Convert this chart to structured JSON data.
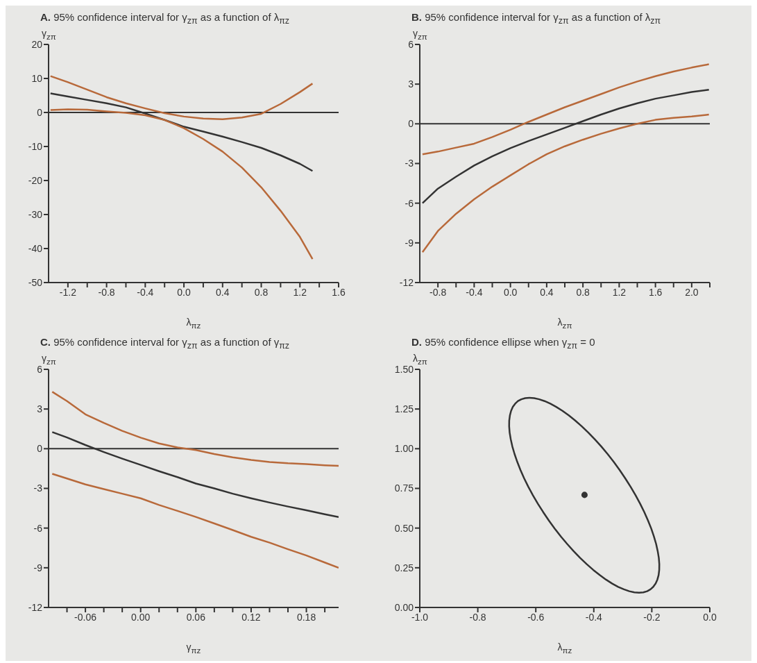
{
  "chart_data": [
    {
      "type": "line",
      "title": "A. 95% confidence interval for γ$_{zπ}$ as a function of λ$_{πz}$",
      "xlabel": "λ$_{πz}$",
      "ylabel": "γ$_{zπ}$",
      "x": [
        -1.38,
        -1.2,
        -1.0,
        -0.8,
        -0.6,
        -0.4,
        -0.2,
        0,
        0.2,
        0.4,
        0.6,
        0.8,
        1.0,
        1.2,
        1.33
      ],
      "series": [
        {
          "color": "#b8693a",
          "values": [
            10.7,
            8.9,
            6.7,
            4.5,
            2.7,
            1.2,
            -0.2,
            -1.2,
            -1.8,
            -2.0,
            -1.5,
            -0.4,
            2.5,
            6.0,
            8.5
          ]
        },
        {
          "color": "#333333",
          "values": [
            5.6,
            4.7,
            3.7,
            2.7,
            1.5,
            -0.3,
            -2.2,
            -4.2,
            -5.6,
            -7.1,
            -8.7,
            -10.4,
            -12.6,
            -15.1,
            -17.2
          ]
        },
        {
          "color": "#b8693a",
          "values": [
            0.7,
            0.9,
            0.8,
            0.3,
            -0.1,
            -0.8,
            -2.2,
            -4.6,
            -7.8,
            -11.5,
            -16.2,
            -22,
            -28.9,
            -36.6,
            -43.1
          ]
        }
      ],
      "xlim": [
        -1.4,
        1.6
      ],
      "xticks": [
        -1.2,
        {
          "value": -1.0,
          "label": null
        },
        -0.8,
        {
          "value": -0.6,
          "label": null
        },
        -0.4,
        {
          "value": -0.2,
          "label": null
        },
        {
          "value": 0,
          "label": "0.0"
        },
        {
          "value": 0.2,
          "label": null
        },
        0.4,
        {
          "value": 0.6,
          "label": null
        },
        0.8,
        {
          "value": 1.0,
          "label": null
        },
        1.2,
        {
          "value": 1.4,
          "label": null
        },
        1.6
      ],
      "ylim": [
        -50,
        20
      ],
      "yticks": [
        -50,
        -40,
        -30,
        -20,
        -10,
        0,
        10,
        20
      ],
      "ref_lines": [
        {
          "axis": "y",
          "value": 0,
          "color": "#333333"
        }
      ],
      "marker": "none",
      "grid": false
    },
    {
      "type": "line",
      "title": "B. 95% confidence interval for γ$_{zπ}$ as a function of λ$_{zπ}$",
      "xlabel": "λ$_{zπ}$",
      "ylabel": "γ$_{zπ}$",
      "x": [
        -0.97,
        -0.8,
        -0.6,
        -0.4,
        -0.2,
        0,
        0.2,
        0.4,
        0.6,
        0.8,
        1.0,
        1.2,
        1.4,
        1.6,
        1.8,
        2.0,
        2.19
      ],
      "series": [
        {
          "color": "#b8693a",
          "values": [
            -2.3,
            -2.1,
            -1.8,
            -1.5,
            -1.0,
            -0.45,
            0.15,
            0.7,
            1.25,
            1.75,
            2.25,
            2.75,
            3.2,
            3.6,
            3.95,
            4.25,
            4.5
          ]
        },
        {
          "color": "#333333",
          "values": [
            -6.0,
            -4.9,
            -4.0,
            -3.15,
            -2.45,
            -1.84,
            -1.3,
            -0.8,
            -0.3,
            0.2,
            0.7,
            1.16,
            1.55,
            1.9,
            2.15,
            2.4,
            2.57
          ]
        },
        {
          "color": "#b8693a",
          "values": [
            -9.7,
            -8.1,
            -6.8,
            -5.7,
            -4.75,
            -3.9,
            -3.05,
            -2.3,
            -1.7,
            -1.2,
            -0.75,
            -0.35,
            0.0,
            0.3,
            0.45,
            0.55,
            0.7
          ]
        }
      ],
      "xlim": [
        -1.0,
        2.2
      ],
      "xticks": [
        -0.8,
        {
          "value": -0.6,
          "label": null
        },
        -0.4,
        {
          "value": -0.2,
          "label": null
        },
        {
          "value": 0,
          "label": "0.0"
        },
        {
          "value": 0.2,
          "label": null
        },
        0.4,
        {
          "value": 0.6,
          "label": null
        },
        0.8,
        {
          "value": 1.0,
          "label": null
        },
        1.2,
        {
          "value": 1.4,
          "label": null
        },
        1.6,
        {
          "value": 1.8,
          "label": null
        },
        {
          "value": 2.0,
          "label": "2.0"
        },
        {
          "value": 2.2,
          "label": null
        }
      ],
      "ylim": [
        -12,
        6
      ],
      "yticks": [
        -12,
        -9,
        -6,
        -3,
        0,
        3,
        6
      ],
      "ref_lines": [
        {
          "axis": "y",
          "value": 0,
          "color": "#333333"
        }
      ],
      "marker": "none",
      "grid": false
    },
    {
      "type": "line",
      "title": "C. 95% confidence interval for γ$_{zπ}$ as a function of γ$_{πz}$",
      "xlabel": "γ$_{πz}$",
      "ylabel": "γ$_{zπ}$",
      "x": [
        -0.096,
        -0.08,
        -0.06,
        -0.04,
        -0.02,
        0,
        0.02,
        0.04,
        0.06,
        0.08,
        0.1,
        0.12,
        0.14,
        0.16,
        0.18,
        0.2,
        0.215
      ],
      "series": [
        {
          "color": "#b8693a",
          "values": [
            4.3,
            3.6,
            2.6,
            1.95,
            1.35,
            0.84,
            0.4,
            0.1,
            -0.1,
            -0.4,
            -0.65,
            -0.85,
            -1.0,
            -1.1,
            -1.16,
            -1.25,
            -1.3
          ]
        },
        {
          "color": "#333333",
          "values": [
            1.26,
            0.85,
            0.28,
            -0.25,
            -0.75,
            -1.22,
            -1.7,
            -2.15,
            -2.63,
            -3.0,
            -3.4,
            -3.75,
            -4.07,
            -4.37,
            -4.65,
            -4.95,
            -5.16
          ]
        },
        {
          "color": "#b8693a",
          "values": [
            -1.9,
            -2.25,
            -2.7,
            -3.05,
            -3.4,
            -3.75,
            -4.25,
            -4.7,
            -5.16,
            -5.65,
            -6.15,
            -6.66,
            -7.1,
            -7.6,
            -8.07,
            -8.6,
            -9.0
          ]
        }
      ],
      "xlim": [
        -0.1,
        0.215
      ],
      "grid": false,
      "xticks": [
        {
          "value": -0.08,
          "label": null
        },
        -0.06,
        {
          "value": -0.04,
          "label": null
        },
        {
          "value": -0.02,
          "label": null
        },
        {
          "value": 0,
          "label": "0.00"
        },
        {
          "value": 0.02,
          "label": null
        },
        {
          "value": 0.04,
          "label": null
        },
        0.06,
        {
          "value": 0.08,
          "label": null
        },
        {
          "value": 0.1,
          "label": null
        },
        0.12,
        {
          "value": 0.14,
          "label": null
        },
        {
          "value": 0.16,
          "label": null
        },
        0.18,
        {
          "value": 0.2,
          "label": null
        }
      ],
      "ylim": [
        -12,
        6
      ],
      "yticks": [
        -12,
        -9,
        -6,
        -3,
        0,
        3,
        6
      ],
      "ref_lines": [
        {
          "axis": "y",
          "value": 0,
          "color": "#333333"
        }
      ],
      "marker": "none"
    },
    {
      "type": "scatter",
      "title": "D. 95% confidence ellipse when γ$_{zπ}$ = 0",
      "xlabel": "λ$_{πz}$",
      "ylabel": "λ$_{zπ}$",
      "series": [
        {
          "color": "#333333",
          "marker": "circle",
          "x": [
            -0.432
          ],
          "values": [
            0.709
          ]
        }
      ],
      "xlim": [
        -1.0,
        0.0
      ],
      "xticks": [
        {
          "value": -1.0,
          "label": "-1.0"
        },
        -0.8,
        -0.6,
        -0.4,
        -0.2,
        {
          "value": 0,
          "label": "0.0"
        }
      ],
      "ylim": [
        0,
        1.5
      ],
      "yticks": [
        {
          "value": 0,
          "label": "0.00"
        },
        {
          "value": 0.25,
          "label": "0.25"
        },
        {
          "value": 0.5,
          "label": "0.50"
        },
        {
          "value": 0.75,
          "label": "0.75"
        },
        {
          "value": 1.0,
          "label": "1.00"
        },
        {
          "value": 1.25,
          "label": "1.25"
        },
        {
          "value": 1.5,
          "label": "1.50"
        }
      ],
      "grid": false
    }
  ]
}
